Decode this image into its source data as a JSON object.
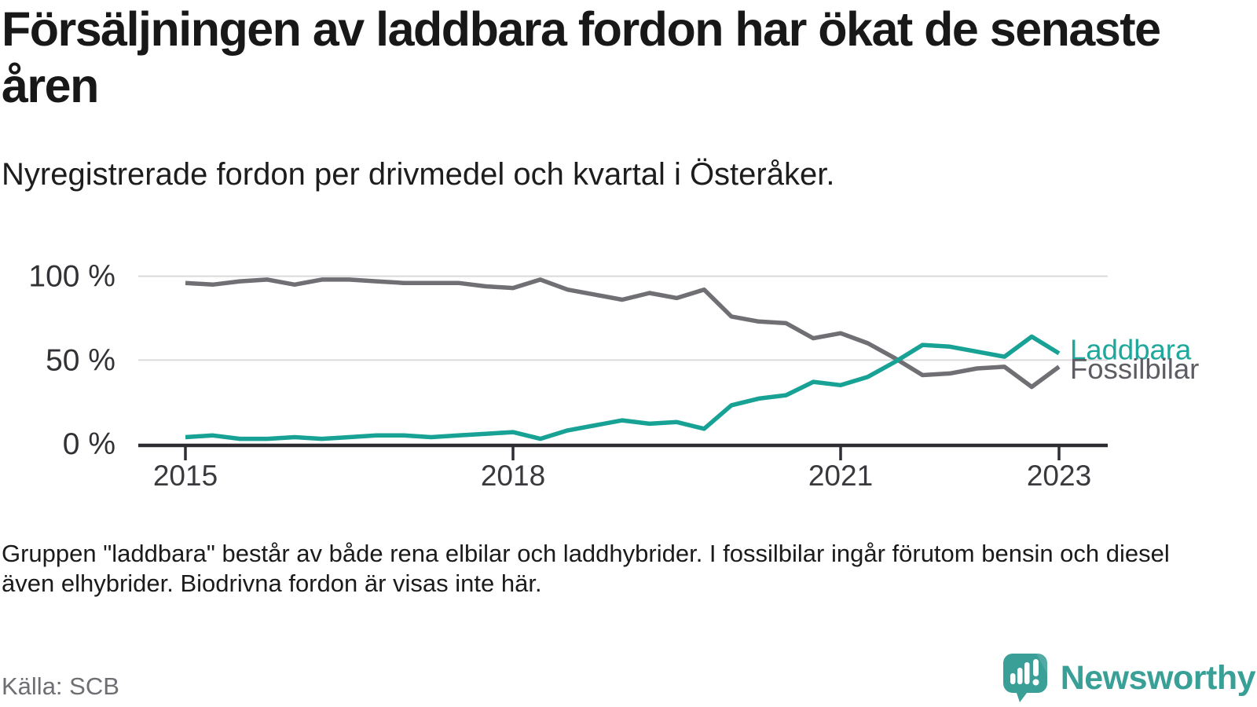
{
  "header": {
    "title": "Försäljningen av laddbara fordon har ökat de senaste åren",
    "subtitle": "Nyregistrerade fordon per drivmedel och kvartal i Österåker."
  },
  "chart_data": {
    "type": "line",
    "unit": "percent",
    "frequency": "quarterly",
    "grid": "horizontal gridlines at 50 and 100 only",
    "legend_position": "labels at end of lines, right side",
    "ylim": [
      0,
      100
    ],
    "y_ticks": [
      0,
      50,
      100
    ],
    "y_tick_labels": [
      "0 %",
      "50 %",
      "100 %"
    ],
    "x_tick_years": [
      2015,
      2018,
      2021,
      2023
    ],
    "x_tick_labels": [
      "2015",
      "2018",
      "2021",
      "2023"
    ],
    "x": [
      "2015Q1",
      "2015Q2",
      "2015Q3",
      "2015Q4",
      "2016Q1",
      "2016Q2",
      "2016Q3",
      "2016Q4",
      "2017Q1",
      "2017Q2",
      "2017Q3",
      "2017Q4",
      "2018Q1",
      "2018Q2",
      "2018Q3",
      "2018Q4",
      "2019Q1",
      "2019Q2",
      "2019Q3",
      "2019Q4",
      "2020Q1",
      "2020Q2",
      "2020Q3",
      "2020Q4",
      "2021Q1",
      "2021Q2",
      "2021Q3",
      "2021Q4",
      "2022Q1",
      "2022Q2",
      "2022Q3",
      "2022Q4",
      "2023Q1"
    ],
    "series": [
      {
        "name": "Fossilbilar",
        "color": "#6f6f74",
        "label_color": "#5d5d63",
        "values": [
          96,
          95,
          97,
          98,
          95,
          98,
          98,
          97,
          96,
          96,
          96,
          94,
          93,
          98,
          92,
          89,
          86,
          90,
          87,
          92,
          76,
          73,
          72,
          63,
          66,
          60,
          51,
          41,
          42,
          45,
          46,
          34,
          46
        ]
      },
      {
        "name": "Laddbara",
        "color": "#17a295",
        "label_color": "#1ea79b",
        "values": [
          4,
          5,
          3,
          3,
          4,
          3,
          4,
          5,
          5,
          4,
          5,
          6,
          7,
          3,
          8,
          11,
          14,
          12,
          13,
          9,
          23,
          27,
          29,
          37,
          35,
          40,
          49,
          59,
          58,
          55,
          52,
          64,
          54
        ]
      }
    ]
  },
  "footer": {
    "note": "Gruppen \"laddbara\" består av både rena elbilar och laddhybrider. I fossilbilar ingår förutom bensin och diesel även elhybrider. Biodrivna fordon är visas inte här.",
    "source": "Källa: SCB",
    "brand": "Newsworthy"
  },
  "colors": {
    "background": "#ffffff",
    "title": "#181818",
    "axis": "#2e2e32",
    "gridline": "#dadada",
    "tick_label": "#3a3a3e",
    "source": "#6e6e73",
    "brand_teal": "#38a097",
    "line_teal": "#17a295",
    "line_gray": "#6f6f74"
  }
}
